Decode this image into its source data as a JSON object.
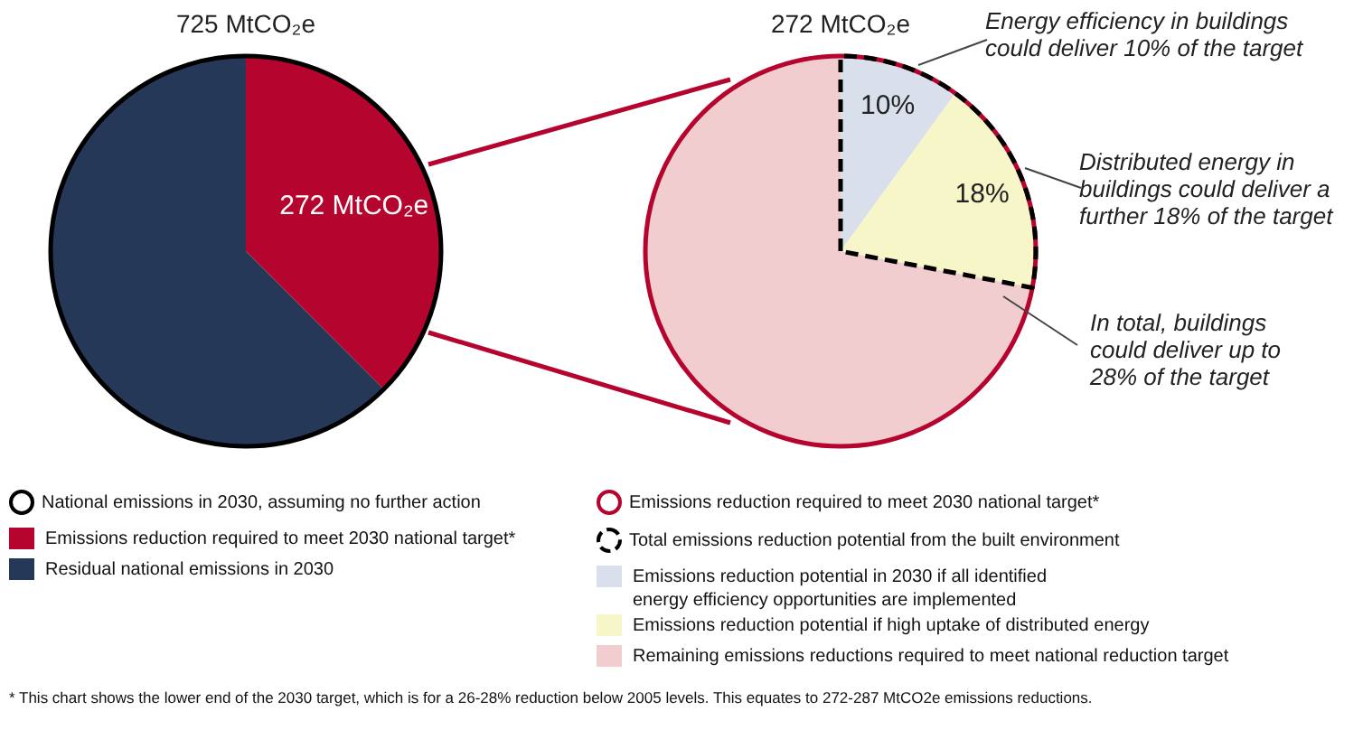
{
  "chart_data": [
    {
      "type": "pie",
      "title": "725 MtCO₂e",
      "categories": [
        "Emissions reduction required to meet 2030 national target*",
        "Residual national emissions in 2030"
      ],
      "values": [
        272,
        453
      ],
      "colors": [
        "#b5052e",
        "#253858"
      ],
      "value_labels": [
        "272 MtCO₂e",
        null
      ],
      "legend": "bottom",
      "annotations": [
        "National emissions in 2030, assuming no further action",
        "* This chart shows the lower end of the 2030 target, which is for a 26-28% reduction below 2005 levels. This equates to 272-287 MtCO2e emissions reductions."
      ]
    },
    {
      "type": "pie",
      "title": "272 MtCO₂e",
      "categories": [
        "Emissions reduction potential in 2030 if all identified energy efficiency opportunities are implemented",
        "Emissions reduction potential if high uptake of distributed energy",
        "Remaining emissions reductions required to meet national reduction target"
      ],
      "values": [
        10,
        18,
        72
      ],
      "colors": [
        "#d9dfeb",
        "#f7f6c8",
        "#f2cdd0"
      ],
      "value_labels": [
        "10%",
        "18%",
        null
      ],
      "legend": "bottom",
      "annotations": [
        "Energy efficiency in buildings could deliver 10% of the target",
        "Distributed energy in buildings could deliver a further 18% of the target",
        "In total, buildings could deliver up to 28% of the target",
        "Emissions reduction required to meet 2030 national target*",
        "Total emissions reduction potential from the built environment"
      ]
    }
  ]
}
